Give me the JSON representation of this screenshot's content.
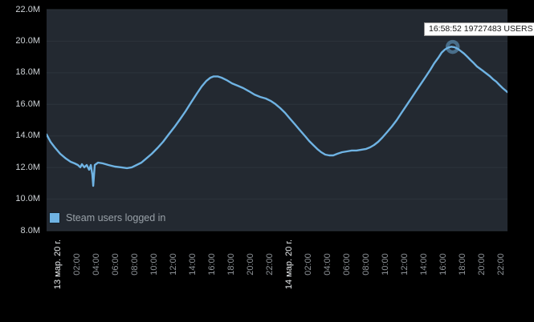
{
  "legend": {
    "label": "Steam users logged in"
  },
  "tooltip": {
    "text": "16:58:52 19727483 USERS",
    "time": "16:58:52",
    "users": "19727483"
  },
  "colors": {
    "page_bg": "#000000",
    "plot_bg": "#232931",
    "grid": "#2d343c",
    "line": "#6fb3e3",
    "marker_ring": "rgba(111,179,227,0.5)",
    "y_label": "#ccd1d5",
    "x_time_label": "#8d9297",
    "x_date_label": "#e9ecee",
    "tooltip_bg": "#ffffff",
    "tooltip_text": "#161616",
    "legend_text": "#99a1a8"
  },
  "chart_data": {
    "type": "line",
    "title": "",
    "xlabel": "",
    "ylabel": "",
    "grid": "horizontal-only",
    "legend_position": "inside-bottom-left",
    "ylim": [
      8,
      22
    ],
    "xlim_hours": [
      -1.17,
      46.67
    ],
    "yticks": [
      {
        "v": 22,
        "label": "22.0M"
      },
      {
        "v": 20,
        "label": "20.0M"
      },
      {
        "v": 18,
        "label": "18.0M"
      },
      {
        "v": 16,
        "label": "16.0M"
      },
      {
        "v": 14,
        "label": "14.0M"
      },
      {
        "v": 12,
        "label": "12.0M"
      },
      {
        "v": 10,
        "label": "10.0M"
      },
      {
        "v": 8,
        "label": "8.0M"
      }
    ],
    "xticks": [
      {
        "t": 0,
        "label": "13 мар. 20 г.",
        "kind": "date"
      },
      {
        "t": 2,
        "label": "02:00",
        "kind": "time"
      },
      {
        "t": 4,
        "label": "04:00",
        "kind": "time"
      },
      {
        "t": 6,
        "label": "06:00",
        "kind": "time"
      },
      {
        "t": 8,
        "label": "08:00",
        "kind": "time"
      },
      {
        "t": 10,
        "label": "10:00",
        "kind": "time"
      },
      {
        "t": 12,
        "label": "12:00",
        "kind": "time"
      },
      {
        "t": 14,
        "label": "14:00",
        "kind": "time"
      },
      {
        "t": 16,
        "label": "16:00",
        "kind": "time"
      },
      {
        "t": 18,
        "label": "18:00",
        "kind": "time"
      },
      {
        "t": 20,
        "label": "20:00",
        "kind": "time"
      },
      {
        "t": 22,
        "label": "22:00",
        "kind": "time"
      },
      {
        "t": 24,
        "label": "14 мар. 20 г.",
        "kind": "date"
      },
      {
        "t": 26,
        "label": "02:00",
        "kind": "time"
      },
      {
        "t": 28,
        "label": "04:00",
        "kind": "time"
      },
      {
        "t": 30,
        "label": "06:00",
        "kind": "time"
      },
      {
        "t": 32,
        "label": "08:00",
        "kind": "time"
      },
      {
        "t": 34,
        "label": "10:00",
        "kind": "time"
      },
      {
        "t": 36,
        "label": "12:00",
        "kind": "time"
      },
      {
        "t": 38,
        "label": "14:00",
        "kind": "time"
      },
      {
        "t": 40,
        "label": "16:00",
        "kind": "time"
      },
      {
        "t": 42,
        "label": "18:00",
        "kind": "time"
      },
      {
        "t": 44,
        "label": "20:00",
        "kind": "time"
      },
      {
        "t": 46,
        "label": "22:00",
        "kind": "time"
      }
    ],
    "series": [
      {
        "name": "Steam users logged in",
        "color": "#6fb3e3",
        "units": "millions of users, t = hours from 13 мар. 00:00",
        "points": [
          [
            -1.17,
            14.09
          ],
          [
            -0.75,
            13.62
          ],
          [
            -0.33,
            13.28
          ],
          [
            0.25,
            12.87
          ],
          [
            0.83,
            12.57
          ],
          [
            1.33,
            12.36
          ],
          [
            1.75,
            12.26
          ],
          [
            2.08,
            12.16
          ],
          [
            2.33,
            12.01
          ],
          [
            2.5,
            12.21
          ],
          [
            2.75,
            12.01
          ],
          [
            3.0,
            12.16
          ],
          [
            3.25,
            11.86
          ],
          [
            3.42,
            12.16
          ],
          [
            3.58,
            11.55
          ],
          [
            3.67,
            10.84
          ],
          [
            3.83,
            12.16
          ],
          [
            4.17,
            12.31
          ],
          [
            4.67,
            12.26
          ],
          [
            5.25,
            12.16
          ],
          [
            5.92,
            12.06
          ],
          [
            6.58,
            12.01
          ],
          [
            7.17,
            11.96
          ],
          [
            7.67,
            12.01
          ],
          [
            8.17,
            12.16
          ],
          [
            8.67,
            12.31
          ],
          [
            9.17,
            12.57
          ],
          [
            9.75,
            12.87
          ],
          [
            10.33,
            13.23
          ],
          [
            10.92,
            13.63
          ],
          [
            11.5,
            14.09
          ],
          [
            12.08,
            14.55
          ],
          [
            12.67,
            15.05
          ],
          [
            13.25,
            15.56
          ],
          [
            13.83,
            16.12
          ],
          [
            14.42,
            16.68
          ],
          [
            14.92,
            17.13
          ],
          [
            15.42,
            17.49
          ],
          [
            15.83,
            17.69
          ],
          [
            16.17,
            17.77
          ],
          [
            16.58,
            17.77
          ],
          [
            17.0,
            17.69
          ],
          [
            17.5,
            17.54
          ],
          [
            18.08,
            17.33
          ],
          [
            18.67,
            17.18
          ],
          [
            19.25,
            17.03
          ],
          [
            19.83,
            16.83
          ],
          [
            20.42,
            16.62
          ],
          [
            21.0,
            16.47
          ],
          [
            21.58,
            16.37
          ],
          [
            22.08,
            16.22
          ],
          [
            22.58,
            16.02
          ],
          [
            23.08,
            15.76
          ],
          [
            23.58,
            15.46
          ],
          [
            24.08,
            15.1
          ],
          [
            24.58,
            14.75
          ],
          [
            25.08,
            14.39
          ],
          [
            25.58,
            14.04
          ],
          [
            26.08,
            13.68
          ],
          [
            26.5,
            13.43
          ],
          [
            26.92,
            13.18
          ],
          [
            27.33,
            12.97
          ],
          [
            27.75,
            12.82
          ],
          [
            28.17,
            12.77
          ],
          [
            28.58,
            12.77
          ],
          [
            29.0,
            12.87
          ],
          [
            29.5,
            12.97
          ],
          [
            30.0,
            13.02
          ],
          [
            30.5,
            13.08
          ],
          [
            31.0,
            13.08
          ],
          [
            31.5,
            13.13
          ],
          [
            32.0,
            13.18
          ],
          [
            32.42,
            13.28
          ],
          [
            32.83,
            13.43
          ],
          [
            33.25,
            13.63
          ],
          [
            33.67,
            13.89
          ],
          [
            34.17,
            14.24
          ],
          [
            34.67,
            14.6
          ],
          [
            35.17,
            15.0
          ],
          [
            35.67,
            15.46
          ],
          [
            36.17,
            15.92
          ],
          [
            36.67,
            16.37
          ],
          [
            37.17,
            16.83
          ],
          [
            37.67,
            17.29
          ],
          [
            38.17,
            17.74
          ],
          [
            38.67,
            18.2
          ],
          [
            39.08,
            18.61
          ],
          [
            39.5,
            18.96
          ],
          [
            39.83,
            19.27
          ],
          [
            40.17,
            19.47
          ],
          [
            40.5,
            19.59
          ],
          [
            40.83,
            19.65
          ],
          [
            41.17,
            19.62
          ],
          [
            41.5,
            19.52
          ],
          [
            41.83,
            19.37
          ],
          [
            42.17,
            19.21
          ],
          [
            42.5,
            19.01
          ],
          [
            42.83,
            18.81
          ],
          [
            43.17,
            18.61
          ],
          [
            43.5,
            18.4
          ],
          [
            43.83,
            18.25
          ],
          [
            44.17,
            18.1
          ],
          [
            44.5,
            17.94
          ],
          [
            44.83,
            17.79
          ],
          [
            45.17,
            17.59
          ],
          [
            45.5,
            17.44
          ],
          [
            45.83,
            17.23
          ],
          [
            46.17,
            17.03
          ],
          [
            46.67,
            16.77
          ]
        ]
      }
    ],
    "highlight_point": {
      "t": 40.98,
      "time": "16:58:52",
      "users": 19727483,
      "value_millions": 19.727483
    }
  }
}
